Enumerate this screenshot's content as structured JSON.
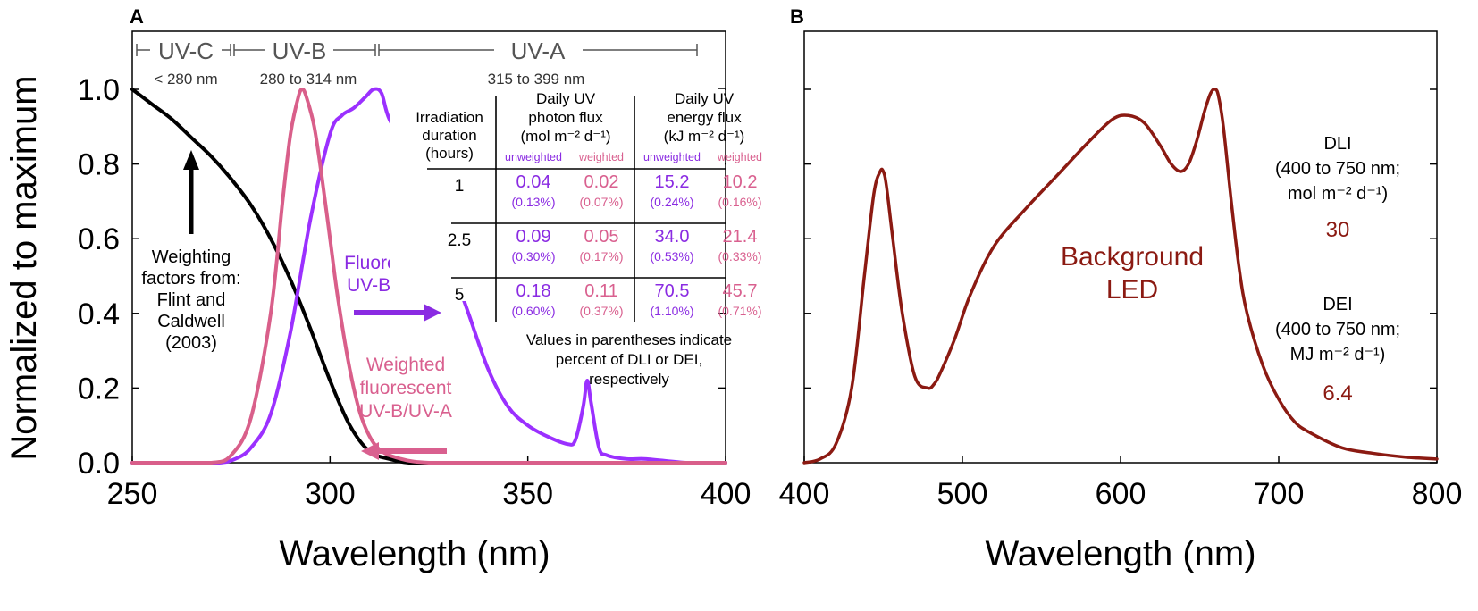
{
  "colors": {
    "black": "#000000",
    "purple": "#9b30ff",
    "purple_text": "#8a2be2",
    "pink": "#d95f8a",
    "led": "#8b1a12",
    "band": "#555555",
    "arrow_purple": "#8a2be2",
    "arrow_pink": "#d9608f"
  },
  "chart_data": [
    {
      "panel_label": "A",
      "type": "line",
      "xlabel": "Wavelength (nm)",
      "ylabel": "Normalized to maximum",
      "xlim": [
        250,
        400
      ],
      "ylim": [
        0,
        1.0
      ],
      "xticks": [
        "250",
        "300",
        "350",
        "400"
      ],
      "yticks": [
        "0.0",
        "0.2",
        "0.4",
        "0.6",
        "0.8",
        "1.0"
      ],
      "bands": [
        {
          "name": "UV-C",
          "range": "< 280 nm"
        },
        {
          "name": "UV-B",
          "range": "280 to 314 nm"
        },
        {
          "name": "UV-A",
          "range": "315 to 399 nm"
        }
      ],
      "series": [
        {
          "name": "Weighting factors (Flint and Caldwell 2003)",
          "color_key": "black",
          "x": [
            250,
            255,
            260,
            265,
            270,
            275,
            280,
            285,
            290,
            295,
            300,
            305,
            310,
            315,
            320,
            325,
            330,
            340,
            350,
            360,
            370,
            380,
            390,
            400
          ],
          "y": [
            1.0,
            0.96,
            0.92,
            0.87,
            0.82,
            0.76,
            0.69,
            0.6,
            0.49,
            0.36,
            0.22,
            0.1,
            0.03,
            0.01,
            0.0,
            0.0,
            0.0,
            0.0,
            0.0,
            0.0,
            0.0,
            0.0,
            0.0,
            0.0
          ]
        },
        {
          "name": "Fluorescent UV-B/UV-A",
          "color_key": "purple",
          "x": [
            250,
            265,
            272,
            276,
            280,
            285,
            290,
            295,
            300,
            303,
            306,
            309,
            311,
            313,
            315,
            320,
            325,
            330,
            335,
            340,
            345,
            350,
            355,
            360,
            362,
            364,
            365,
            366,
            368,
            370,
            375,
            380,
            390,
            400
          ],
          "y": [
            0.0,
            0.0,
            0.0,
            0.01,
            0.04,
            0.13,
            0.35,
            0.65,
            0.88,
            0.93,
            0.95,
            0.98,
            1.0,
            0.99,
            0.92,
            0.83,
            0.7,
            0.55,
            0.4,
            0.25,
            0.15,
            0.1,
            0.07,
            0.05,
            0.06,
            0.15,
            0.22,
            0.16,
            0.04,
            0.02,
            0.01,
            0.01,
            0.0,
            0.0
          ]
        },
        {
          "name": "Weighted fluorescent UV-B/UV-A",
          "color_key": "pink",
          "x": [
            250,
            260,
            270,
            275,
            280,
            285,
            288,
            290,
            292,
            293,
            294,
            296,
            298,
            300,
            302,
            305,
            308,
            312,
            318,
            325,
            335,
            350,
            370,
            400
          ],
          "y": [
            0.0,
            0.0,
            0.0,
            0.02,
            0.12,
            0.4,
            0.7,
            0.88,
            0.98,
            1.0,
            0.98,
            0.9,
            0.76,
            0.6,
            0.44,
            0.25,
            0.12,
            0.04,
            0.01,
            0.0,
            0.0,
            0.0,
            0.0,
            0.0
          ]
        }
      ],
      "annotations": {
        "weighting_line1": "Weighting",
        "weighting_line2": "factors from:",
        "weighting_line3": "Flint and",
        "weighting_line4": "Caldwell",
        "weighting_line5": "(2003)",
        "fluor_line1": "Fluorescent",
        "fluor_line2": "UV-B/UV-A",
        "wfluor_line1": "Weighted",
        "wfluor_line2": "fluorescent",
        "wfluor_line3": "UV-B/UV-A"
      },
      "table": {
        "header_irr": [
          "Irradiation",
          "duration",
          "(hours)"
        ],
        "header_photon": [
          "Daily UV",
          "photon flux",
          "(mol m⁻² d⁻¹)"
        ],
        "header_energy": [
          "Daily UV",
          "energy flux",
          "(kJ m⁻² d⁻¹)"
        ],
        "sub_unweighted": "unweighted",
        "sub_weighted": "weighted",
        "rows": [
          {
            "hours": "1",
            "photon_unw": "0.04",
            "photon_unw_pct": "(0.13%)",
            "photon_w": "0.02",
            "photon_w_pct": "(0.07%)",
            "energy_unw": "15.2",
            "energy_unw_pct": "(0.24%)",
            "energy_w": "10.2",
            "energy_w_pct": "(0.16%)"
          },
          {
            "hours": "2.5",
            "photon_unw": "0.09",
            "photon_unw_pct": "(0.30%)",
            "photon_w": "0.05",
            "photon_w_pct": "(0.17%)",
            "energy_unw": "34.0",
            "energy_unw_pct": "(0.53%)",
            "energy_w": "21.4",
            "energy_w_pct": "(0.33%)"
          },
          {
            "hours": "5",
            "photon_unw": "0.18",
            "photon_unw_pct": "(0.60%)",
            "photon_w": "0.11",
            "photon_w_pct": "(0.37%)",
            "energy_unw": "70.5",
            "energy_unw_pct": "(1.10%)",
            "energy_w": "45.7",
            "energy_w_pct": "(0.71%)"
          }
        ],
        "note": [
          "Values in parentheses indicate",
          "percent of DLI or DEI,",
          "respectively"
        ]
      }
    },
    {
      "panel_label": "B",
      "type": "line",
      "xlabel": "Wavelength (nm)",
      "xlim": [
        400,
        800
      ],
      "ylim": [
        0,
        1.0
      ],
      "xticks": [
        "400",
        "500",
        "600",
        "700",
        "800"
      ],
      "series": [
        {
          "name": "Background LED",
          "color_key": "led",
          "x": [
            400,
            410,
            420,
            430,
            438,
            444,
            448,
            450,
            452,
            456,
            462,
            470,
            478,
            482,
            486,
            495,
            505,
            520,
            540,
            560,
            580,
            595,
            605,
            615,
            625,
            632,
            638,
            643,
            648,
            653,
            657,
            660,
            662,
            665,
            670,
            675,
            680,
            690,
            700,
            710,
            720,
            740,
            760,
            780,
            800
          ],
          "y": [
            0.0,
            0.01,
            0.05,
            0.2,
            0.5,
            0.72,
            0.78,
            0.78,
            0.74,
            0.6,
            0.4,
            0.23,
            0.2,
            0.21,
            0.24,
            0.33,
            0.45,
            0.58,
            0.68,
            0.77,
            0.86,
            0.92,
            0.93,
            0.91,
            0.85,
            0.8,
            0.78,
            0.8,
            0.86,
            0.94,
            0.99,
            1.0,
            0.98,
            0.9,
            0.7,
            0.52,
            0.4,
            0.26,
            0.17,
            0.11,
            0.08,
            0.04,
            0.025,
            0.015,
            0.01
          ]
        }
      ],
      "annotations": {
        "led_line1": "Background",
        "led_line2": "LED",
        "dli_line1": "DLI",
        "dli_line2": "(400 to 750 nm;",
        "dli_line3": "mol m⁻² d⁻¹)",
        "dli_value": "30",
        "dei_line1": "DEI",
        "dei_line2": "(400 to 750 nm;",
        "dei_line3": "MJ m⁻² d⁻¹)",
        "dei_value": "6.4"
      }
    }
  ]
}
